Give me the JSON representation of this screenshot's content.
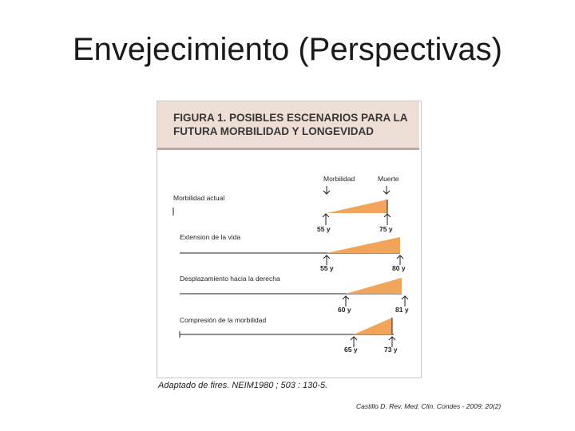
{
  "slide": {
    "title": "Envejecimiento (Perspectivas)",
    "citation": "Castillo D. Rev. Med. Clin. Condes - 2009; 20(2)"
  },
  "figure": {
    "title_line1": "FIGURA 1. POSIBLES ESCENARIOS PARA LA",
    "title_line2": "FUTURA MORBILIDAD Y LONGEVIDAD",
    "header_morbilidad": "Morbilidad",
    "header_muerte": "Muerte",
    "caption": "Adaptado de fires. NEIM1980 ; 503 : 130-5.",
    "accent_color": "#f0a55a",
    "scenarios": [
      {
        "label": "Morbilidad actual",
        "start": "55 y",
        "end": "75 y"
      },
      {
        "label": "Extension de la vida",
        "start": "55 y",
        "end": "80 y"
      },
      {
        "label": "Desplazamiento hacia la derecha",
        "start": "60 y",
        "end": "81 y"
      },
      {
        "label": "Compresión de la morbilidad",
        "start": "65 y",
        "end": "73 y"
      }
    ]
  }
}
